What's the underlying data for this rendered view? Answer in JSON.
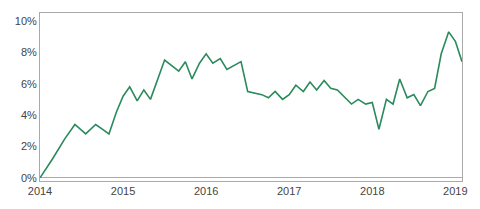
{
  "chart_data": {
    "type": "line",
    "x": [
      2014.0,
      2014.15,
      2014.3,
      2014.42,
      2014.55,
      2014.67,
      2014.75,
      2014.83,
      2014.92,
      2015.0,
      2015.08,
      2015.17,
      2015.25,
      2015.33,
      2015.5,
      2015.67,
      2015.75,
      2015.83,
      2015.92,
      2016.0,
      2016.08,
      2016.17,
      2016.25,
      2016.42,
      2016.5,
      2016.58,
      2016.67,
      2016.75,
      2016.83,
      2016.92,
      2017.0,
      2017.08,
      2017.17,
      2017.25,
      2017.33,
      2017.42,
      2017.5,
      2017.58,
      2017.67,
      2017.75,
      2017.83,
      2017.92,
      2018.0,
      2018.08,
      2018.17,
      2018.25,
      2018.33,
      2018.42,
      2018.5,
      2018.58,
      2018.67,
      2018.75,
      2018.83,
      2018.92,
      2019.0,
      2019.08
    ],
    "values": [
      0.0,
      0.012,
      0.025,
      0.034,
      0.028,
      0.034,
      0.031,
      0.028,
      0.042,
      0.052,
      0.058,
      0.049,
      0.056,
      0.05,
      0.075,
      0.068,
      0.074,
      0.063,
      0.073,
      0.079,
      0.073,
      0.076,
      0.069,
      0.074,
      0.055,
      0.054,
      0.053,
      0.051,
      0.055,
      0.05,
      0.053,
      0.059,
      0.055,
      0.061,
      0.056,
      0.062,
      0.057,
      0.056,
      0.051,
      0.047,
      0.05,
      0.047,
      0.048,
      0.031,
      0.05,
      0.047,
      0.063,
      0.051,
      0.053,
      0.046,
      0.055,
      0.057,
      0.079,
      0.093,
      0.087,
      0.074
    ],
    "color": "#2a8a5c",
    "xlim": [
      2014.0,
      2019.08
    ],
    "ylim": [
      -0.002,
      0.105
    ],
    "xticks": [
      2014,
      2015,
      2016,
      2017,
      2018,
      2019
    ],
    "yticks": [
      {
        "value": 0.0,
        "label": "0%"
      },
      {
        "value": 0.02,
        "label": "2%"
      },
      {
        "value": 0.04,
        "label": "4%"
      },
      {
        "value": 0.06,
        "label": "6%"
      },
      {
        "value": 0.08,
        "label": "8%"
      },
      {
        "value": 0.1,
        "label": "10%"
      }
    ],
    "grid": false
  }
}
